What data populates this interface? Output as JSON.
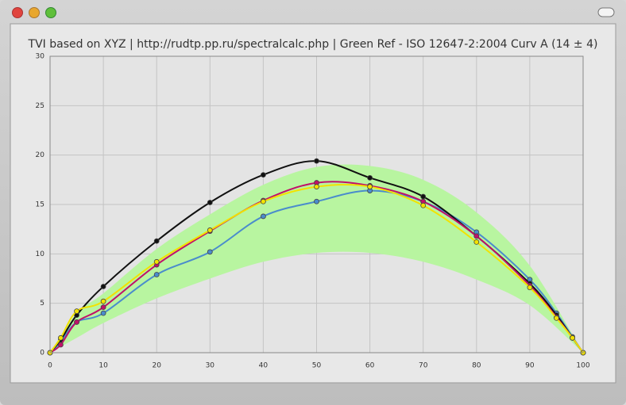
{
  "chart_data": {
    "type": "line",
    "title": "TVI based on XYZ | http://rudtp.pp.ru/spectralcalc.php | Green Ref - ISO 12647-2:2004 Curv A (14 ± 4)",
    "x": [
      0,
      2,
      5,
      10,
      20,
      30,
      40,
      50,
      60,
      70,
      80,
      90,
      95,
      98,
      100
    ],
    "series": [
      {
        "color": "#4a8ccc",
        "values": [
          0,
          1.1,
          3.1,
          4.0,
          7.9,
          10.2,
          13.8,
          15.3,
          16.4,
          15.3,
          12.2,
          7.4,
          4.0,
          1.6,
          0
        ]
      },
      {
        "color": "#111111",
        "values": [
          0,
          1.3,
          3.8,
          6.7,
          11.3,
          15.2,
          18.0,
          19.4,
          17.7,
          15.8,
          11.8,
          7.0,
          3.8,
          1.5,
          0
        ]
      },
      {
        "color": "#c0106a",
        "values": [
          0,
          0.8,
          3.1,
          4.6,
          8.9,
          12.3,
          15.4,
          17.2,
          16.9,
          15.3,
          11.8,
          6.8,
          3.6,
          1.5,
          0
        ]
      },
      {
        "color": "#f2e200",
        "values": [
          0,
          1.5,
          4.2,
          5.2,
          9.2,
          12.4,
          15.3,
          16.8,
          16.8,
          14.9,
          11.2,
          6.6,
          3.5,
          1.5,
          0
        ]
      }
    ],
    "band": {
      "color": "#b8f5a0",
      "x": [
        0,
        5,
        10,
        20,
        30,
        40,
        50,
        60,
        70,
        80,
        90,
        100
      ],
      "upper": [
        0,
        4,
        6,
        10.5,
        14,
        17,
        18.8,
        18.9,
        17.5,
        14.2,
        8.8,
        0
      ],
      "lower": [
        0,
        1.5,
        3,
        5.5,
        7.5,
        9.2,
        10.1,
        10.1,
        9.2,
        7.4,
        4.8,
        0
      ]
    },
    "xlim": [
      0,
      100
    ],
    "xticks": [
      0,
      10,
      20,
      30,
      40,
      50,
      60,
      70,
      80,
      90,
      100
    ],
    "ylim": [
      0,
      30
    ],
    "yticks": [
      0,
      5,
      10,
      15,
      20,
      25,
      30
    ],
    "grid": true
  }
}
